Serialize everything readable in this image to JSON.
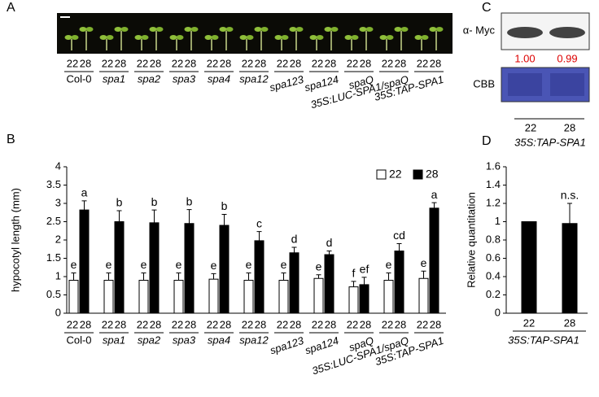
{
  "panel_labels": [
    "A",
    "B",
    "C",
    "D"
  ],
  "panel_c": {
    "antibody": "α- Myc",
    "quantities": [
      "1.00",
      "0.99"
    ],
    "stain": "CBB"
  },
  "chart_data": [
    {
      "type": "bar",
      "ylabel": "hypocotyl length (mm)",
      "categories": [
        "Col-0",
        "spa1",
        "spa2",
        "spa3",
        "spa4",
        "spa12",
        "spa123",
        "spa124",
        "spaQ",
        "35S:LUC-SPA1/spaQ",
        "35S:TAP-SPA1"
      ],
      "series": [
        {
          "name": "22",
          "color": "#ffffff",
          "values": [
            0.9,
            0.9,
            0.9,
            0.9,
            0.93,
            0.9,
            0.9,
            0.95,
            0.72,
            0.9,
            0.95
          ],
          "errors": [
            0.2,
            0.2,
            0.2,
            0.2,
            0.15,
            0.2,
            0.2,
            0.1,
            0.15,
            0.2,
            0.2
          ],
          "labels": [
            "e",
            "e",
            "e",
            "e",
            "e",
            "e",
            "e",
            "e",
            "f",
            "e",
            "e"
          ]
        },
        {
          "name": "28",
          "color": "#000000",
          "values": [
            2.82,
            2.5,
            2.47,
            2.45,
            2.4,
            1.98,
            1.65,
            1.6,
            0.78,
            1.7,
            2.87
          ],
          "errors": [
            0.25,
            0.3,
            0.35,
            0.38,
            0.3,
            0.25,
            0.15,
            0.1,
            0.2,
            0.2,
            0.15
          ],
          "labels": [
            "a",
            "b",
            "b",
            "b",
            "b",
            "c",
            "d",
            "d",
            "ef",
            "cd",
            "a"
          ]
        }
      ],
      "ylim": [
        0,
        4
      ],
      "yticks": [
        0,
        0.5,
        1,
        1.5,
        2,
        2.5,
        3,
        3.5,
        4
      ],
      "legend": "upper right"
    },
    {
      "type": "bar",
      "ylabel": "Relative quantitation",
      "group_label": "35S:TAP-SPA1",
      "categories": [
        "22",
        "28"
      ],
      "series": [
        {
          "color": "#000000",
          "values": [
            1,
            0.98
          ],
          "errors": [
            0,
            0.22
          ],
          "labels": [
            null,
            "n.s."
          ]
        }
      ],
      "ylim": [
        0,
        1.6
      ],
      "yticks": [
        0,
        0.2,
        0.4,
        0.6,
        0.8,
        1,
        1.2,
        1.4,
        1.6
      ]
    }
  ]
}
